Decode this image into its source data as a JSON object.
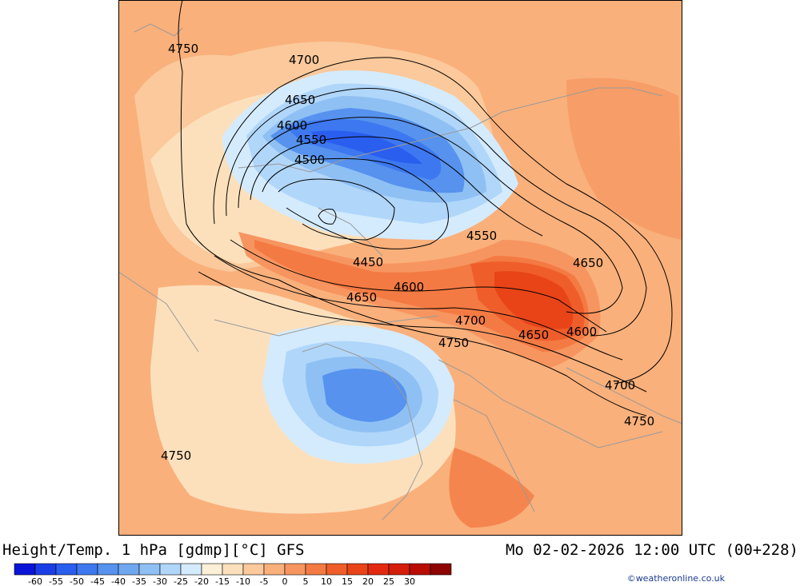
{
  "header": {
    "title": "Height/Temp. 1 hPa [gdmp][°C] GFS",
    "datetime": "Mo 02-02-2026 12:00 UTC (00+228)"
  },
  "credit": "©weatheronline.co.uk",
  "legend": {
    "tick_labels": [
      "-60",
      "-55",
      "-50",
      "-45",
      "-40",
      "-35",
      "-30",
      "-25",
      "-20",
      "-15",
      "-10",
      "-5",
      "0",
      "5",
      "10",
      "15",
      "20",
      "25",
      "30"
    ],
    "colors": [
      "#0a14d8",
      "#1a3ee6",
      "#2a5eef",
      "#3d78f0",
      "#5692ee",
      "#70a8ef",
      "#8fc0f4",
      "#b0d6fa",
      "#d4ebfd",
      "#fdf0d8",
      "#fce0bc",
      "#fbc99b",
      "#f9b07b",
      "#f79560",
      "#f47a43",
      "#ef5e2a",
      "#e84418",
      "#e32a10",
      "#d51e0a",
      "#b80d05",
      "#8e0400"
    ]
  },
  "map": {
    "contour_labels": [
      {
        "text": "4750"
      },
      {
        "text": "4700"
      },
      {
        "text": "4650"
      },
      {
        "text": "4600"
      },
      {
        "text": "4550"
      },
      {
        "text": "4500"
      },
      {
        "text": "4550"
      },
      {
        "text": "4450"
      },
      {
        "text": "4650"
      },
      {
        "text": "4600"
      },
      {
        "text": "4650"
      },
      {
        "text": "4700"
      },
      {
        "text": "4650"
      },
      {
        "text": "4600"
      },
      {
        "text": "4750"
      },
      {
        "text": "4700"
      },
      {
        "text": "4750"
      },
      {
        "text": "4750"
      }
    ]
  }
}
